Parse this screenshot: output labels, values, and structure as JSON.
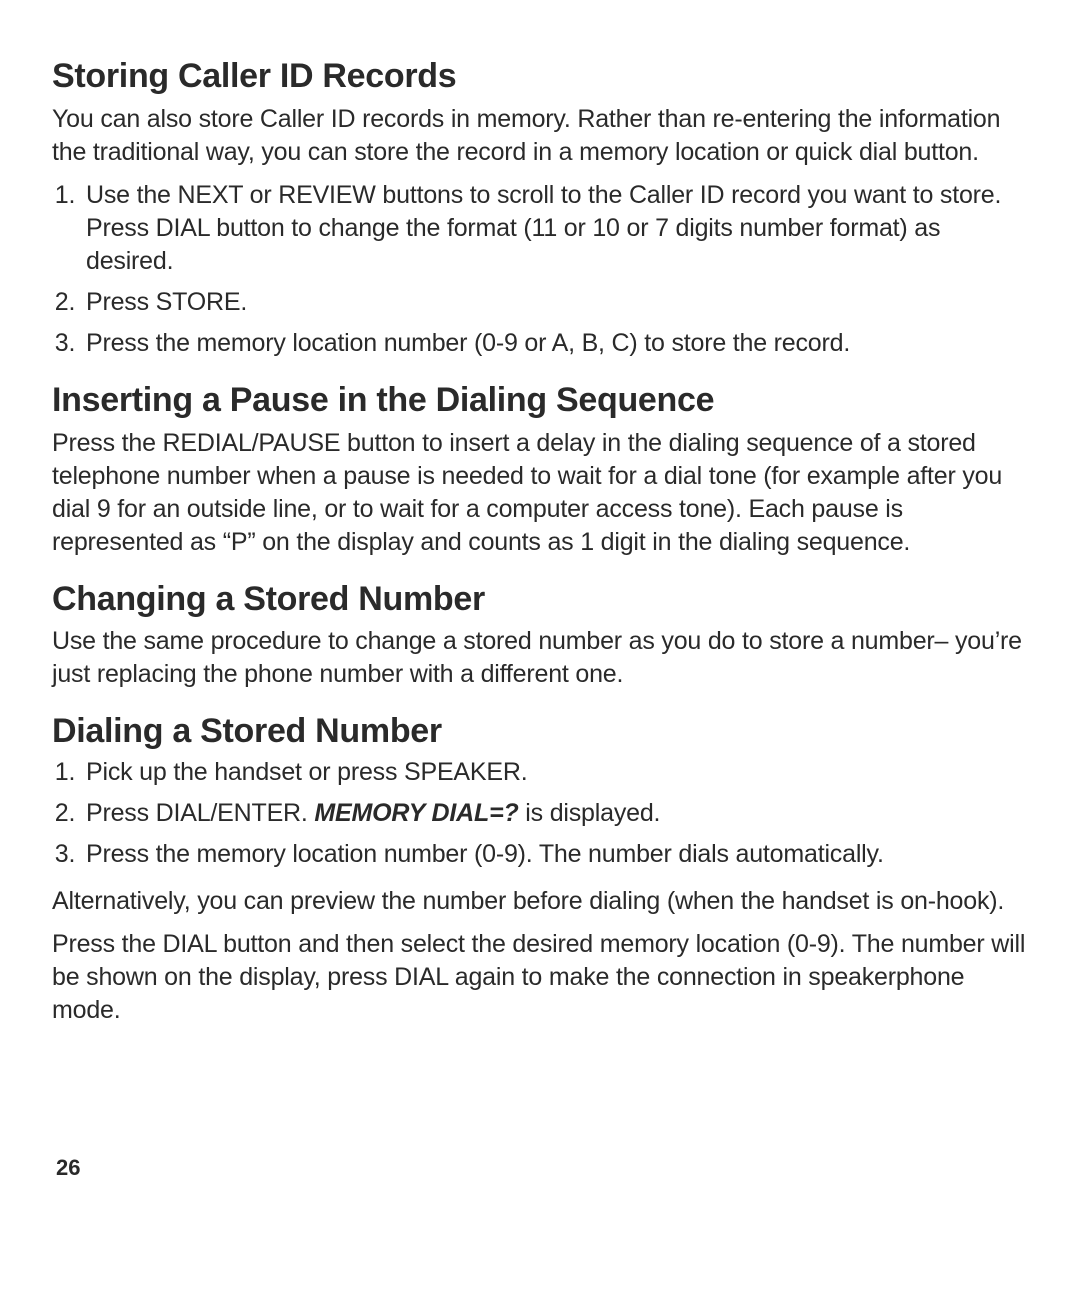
{
  "sections": [
    {
      "heading": "Storing Caller ID Records",
      "para": "You can also store Caller ID records in memory. Rather than re-entering the information the traditional way, you can store the record in a memory location or quick dial button.",
      "steps": [
        "Use the NEXT or REVIEW buttons to scroll to the Caller ID record you want to store. Press DIAL button to change the format (11 or 10 or 7 digits number format) as desired.",
        "Press STORE.",
        "Press the memory location number (0-9 or A, B, C) to store the record."
      ]
    },
    {
      "heading": "Inserting a Pause in the Dialing Sequence",
      "para": "Press the REDIAL/PAUSE button to insert a delay in the dialing sequence of a stored telephone number when a pause is needed to wait for a dial tone (for example after you dial 9 for an outside line, or to wait for a computer access tone). Each pause is represented as “P” on the display and counts as 1 digit in the dialing sequence."
    },
    {
      "heading": "Changing a Stored Number",
      "para": "Use the same procedure to change a stored number as you do to store a number– you’re just replacing the phone number with a different one."
    },
    {
      "heading": "Dialing a Stored Number",
      "steps": [
        "Pick up the handset or press SPEAKER.",
        {
          "pre": "Press DIAL/ENTER. ",
          "bold": "MEMORY DIAL=?",
          "post": " is displayed."
        },
        "Press the memory location number (0-9). The number dials automatically."
      ],
      "after_paras": [
        "Alternatively, you can preview the number before dialing (when the handset is on-hook).",
        "Press the DIAL button and then select the desired memory location (0-9). The number will be shown on the display, press DIAL again to make the connection in speakerphone mode."
      ]
    }
  ],
  "page_number": "26",
  "colors": {
    "background": "#ffffff",
    "text": "#2a2a2a"
  },
  "typography": {
    "heading_fontsize": 34,
    "body_fontsize": 25,
    "heading_weight": 700,
    "body_weight": 400
  }
}
